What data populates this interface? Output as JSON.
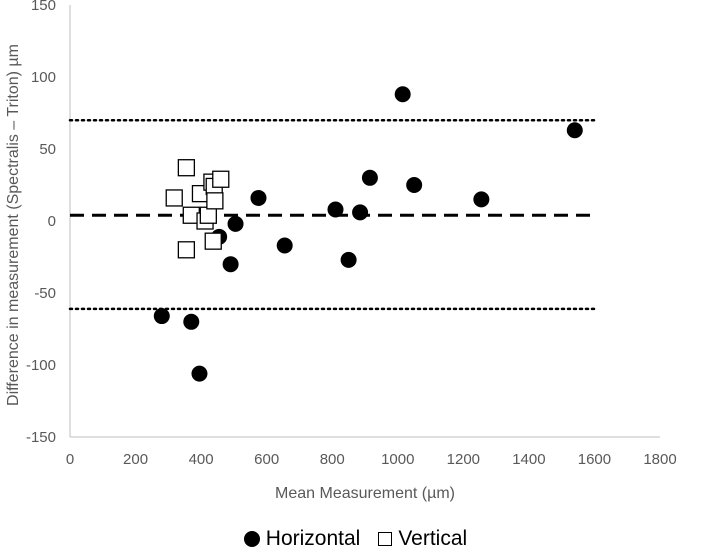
{
  "chart_data": {
    "type": "scatter",
    "title": "",
    "xlabel": "Mean Measurement (µm)",
    "ylabel": "Difference in measurement (Spectralis – Triton) µm",
    "xlim": [
      0,
      1800
    ],
    "ylim": [
      -150,
      150
    ],
    "x_ticks": [
      "0",
      "200",
      "400",
      "600",
      "800",
      "1000",
      "1200",
      "1400",
      "1600",
      "1800"
    ],
    "y_ticks": [
      "150",
      "100",
      "50",
      "0",
      "-50",
      "-100",
      "-150"
    ],
    "grid": false,
    "reference_lines": {
      "mean_difference": 4,
      "upper_limit": 70,
      "lower_limit": -61
    },
    "series": [
      {
        "name": "Horizontal",
        "marker": "filled-circle",
        "points": [
          {
            "x": 280,
            "y": -66
          },
          {
            "x": 370,
            "y": -70
          },
          {
            "x": 395,
            "y": -106
          },
          {
            "x": 455,
            "y": -11
          },
          {
            "x": 490,
            "y": -30
          },
          {
            "x": 505,
            "y": -2
          },
          {
            "x": 575,
            "y": 16
          },
          {
            "x": 655,
            "y": -17
          },
          {
            "x": 810,
            "y": 8
          },
          {
            "x": 850,
            "y": -27
          },
          {
            "x": 885,
            "y": 6
          },
          {
            "x": 915,
            "y": 30
          },
          {
            "x": 1015,
            "y": 88
          },
          {
            "x": 1050,
            "y": 25
          },
          {
            "x": 1255,
            "y": 15
          },
          {
            "x": 1540,
            "y": 63
          }
        ]
      },
      {
        "name": "Vertical",
        "marker": "open-square",
        "points": [
          {
            "x": 355,
            "y": 37
          },
          {
            "x": 355,
            "y": -20
          },
          {
            "x": 318,
            "y": 16
          },
          {
            "x": 370,
            "y": 4
          },
          {
            "x": 398,
            "y": 19
          },
          {
            "x": 412,
            "y": 0
          },
          {
            "x": 422,
            "y": 4
          },
          {
            "x": 433,
            "y": 27
          },
          {
            "x": 437,
            "y": -14
          },
          {
            "x": 440,
            "y": 24
          },
          {
            "x": 442,
            "y": 14
          },
          {
            "x": 460,
            "y": 29
          }
        ]
      }
    ]
  }
}
